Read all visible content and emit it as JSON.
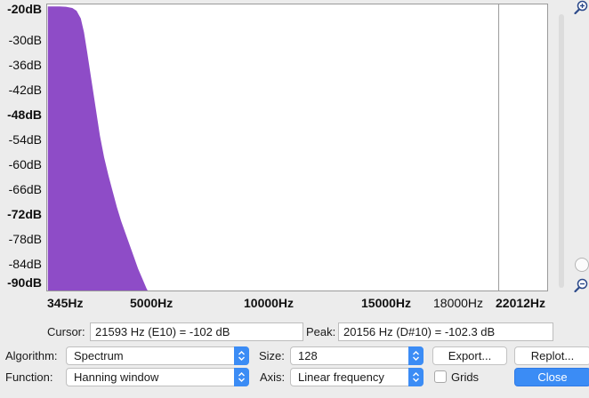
{
  "chart_data": {
    "type": "area",
    "y_tick_labels": [
      {
        "label": "-20dB",
        "bold": true
      },
      {
        "label": "-30dB",
        "bold": false
      },
      {
        "label": "-36dB",
        "bold": false
      },
      {
        "label": "-42dB",
        "bold": false
      },
      {
        "label": "-48dB",
        "bold": true
      },
      {
        "label": "-54dB",
        "bold": false
      },
      {
        "label": "-60dB",
        "bold": false
      },
      {
        "label": "-66dB",
        "bold": false
      },
      {
        "label": "-72dB",
        "bold": true
      },
      {
        "label": "-78dB",
        "bold": false
      },
      {
        "label": "-84dB",
        "bold": false
      },
      {
        "label": "-90dB",
        "bold": true
      }
    ],
    "x_tick_labels": [
      {
        "label": "345Hz",
        "bold": true
      },
      {
        "label": "5000Hz",
        "bold": true
      },
      {
        "label": "10000Hz",
        "bold": true
      },
      {
        "label": "15000Hz",
        "bold": true
      },
      {
        "label": "18000Hz",
        "bold": false
      },
      {
        "label": "22012Hz",
        "bold": true
      }
    ],
    "xlim": [
      345,
      22012
    ],
    "ylim": [
      -91,
      -19
    ],
    "cursor_hz": 21593,
    "fill_color": "#8e4cc7",
    "series": [
      {
        "x": [
          345,
          600,
          900,
          1200,
          1500,
          1700,
          1900,
          2050,
          2200,
          2400,
          2600,
          2800,
          3000,
          3200,
          3400,
          3600,
          3800,
          4000,
          4200,
          4400,
          4600,
          4800,
          5000,
          5050
        ],
        "values": [
          -19.5,
          -19.5,
          -19.5,
          -19.6,
          -19.9,
          -20.6,
          -22.5,
          -26,
          -31,
          -38,
          -45,
          -52,
          -57.5,
          -62,
          -66,
          -70,
          -73.5,
          -76.5,
          -79.5,
          -82.5,
          -85.5,
          -88,
          -90.5,
          -91
        ]
      }
    ]
  },
  "cursor": {
    "label": "Cursor:",
    "value": "21593 Hz (E10) = -102 dB"
  },
  "peak": {
    "label": "Peak:",
    "value": "20156 Hz (D#10) = -102.3 dB"
  },
  "algorithm": {
    "label": "Algorithm:",
    "value": "Spectrum"
  },
  "size": {
    "label": "Size:",
    "value": "128"
  },
  "function": {
    "label": "Function:",
    "value": "Hanning window"
  },
  "axis": {
    "label": "Axis:",
    "value": "Linear frequency"
  },
  "buttons": {
    "export": "Export...",
    "replot": "Replot...",
    "close": "Close"
  },
  "grids": {
    "label": "Grids",
    "checked": false
  },
  "colors": {
    "accent": "#3b8cf5"
  }
}
